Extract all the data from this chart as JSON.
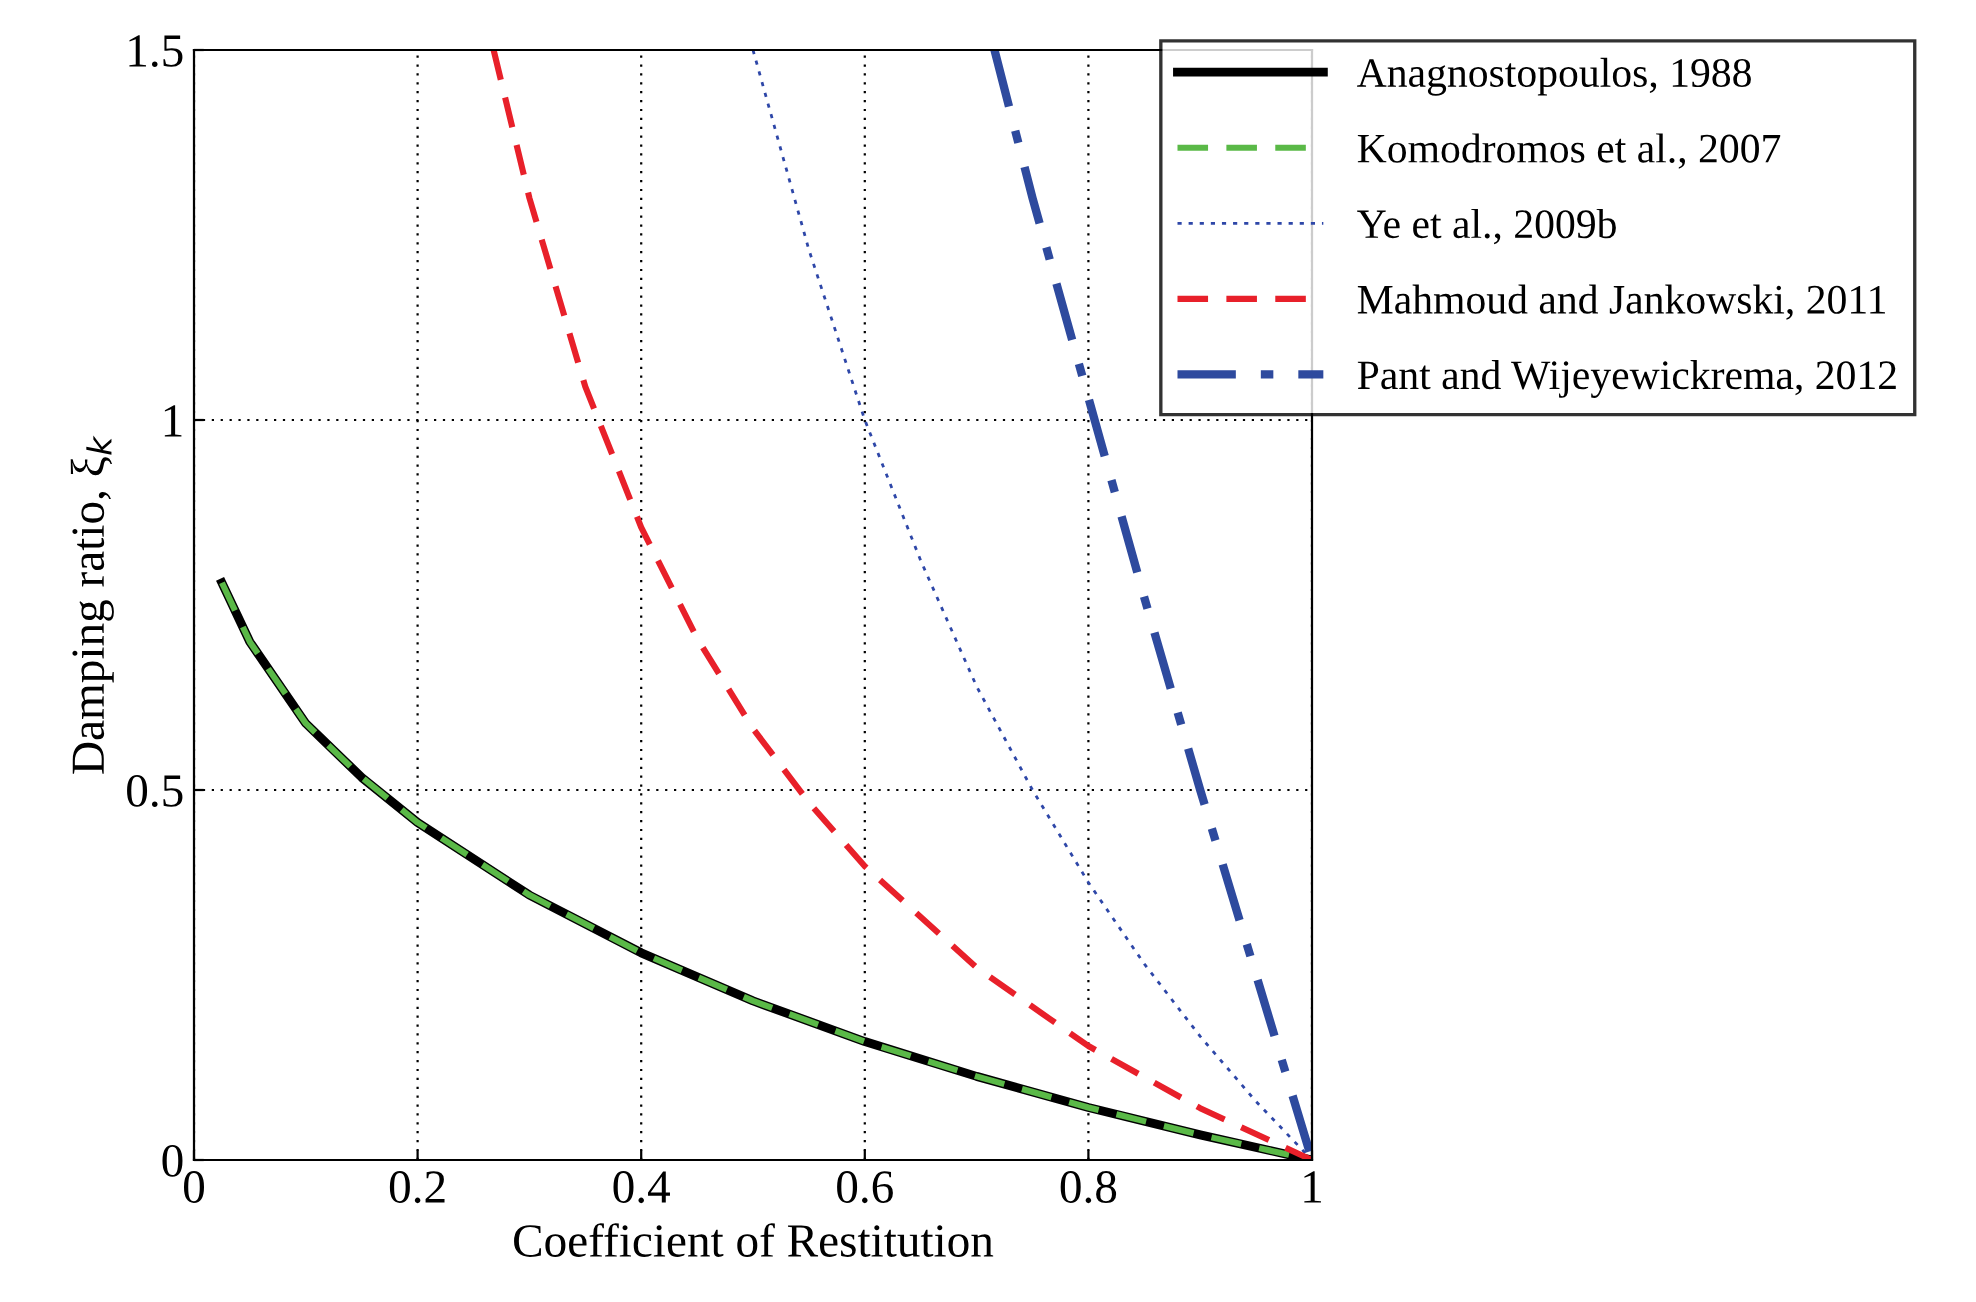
{
  "chart_data": {
    "type": "line",
    "xlabel": "Coefficient of Restitution",
    "ylabel": "Damping ratio, ξ$_{k}$",
    "xlim": [
      0,
      1
    ],
    "ylim": [
      0,
      1.5
    ],
    "xticks": [
      0,
      0.2,
      0.4,
      0.6,
      0.8,
      1
    ],
    "yticks": [
      0,
      0.5,
      1,
      1.5
    ],
    "grid": true,
    "legend": "top right",
    "marker": "none",
    "series": [
      {
        "name": "Anagnostopoulos, 1988",
        "color": "#000000",
        "line_style": "solid",
        "x": [
          0.025,
          0.05,
          0.1,
          0.15,
          0.2,
          0.3,
          0.4,
          0.5,
          0.6,
          0.7,
          0.8,
          0.9,
          1.0
        ],
        "values": [
          0.78,
          0.7,
          0.59,
          0.517,
          0.456,
          0.358,
          0.28,
          0.215,
          0.16,
          0.113,
          0.071,
          0.034,
          0
        ]
      },
      {
        "name": "Komodromos et al., 2007",
        "color": "#5ab947",
        "line_style": "dashed",
        "x": [
          0.025,
          0.05,
          0.1,
          0.15,
          0.2,
          0.3,
          0.4,
          0.5,
          0.6,
          0.7,
          0.8,
          0.9,
          1.0
        ],
        "values": [
          0.78,
          0.7,
          0.59,
          0.517,
          0.456,
          0.358,
          0.28,
          0.215,
          0.16,
          0.113,
          0.071,
          0.034,
          0
        ]
      },
      {
        "name": "Ye et al., 2009b",
        "color": "#2e47a8",
        "line_style": "dotted",
        "x": [
          0.5,
          0.55,
          0.6,
          0.65,
          0.7,
          0.75,
          0.8,
          0.85,
          0.9,
          0.95,
          1.0
        ],
        "values": [
          1.5,
          1.23,
          1.0,
          0.81,
          0.64,
          0.5,
          0.375,
          0.265,
          0.167,
          0.079,
          0
        ]
      },
      {
        "name": "Mahmoud and Jankowski, 2011",
        "color": "#e8202a",
        "line_style": "dashed",
        "x": [
          0.268,
          0.3,
          0.35,
          0.4,
          0.45,
          0.5,
          0.55,
          0.6,
          0.7,
          0.8,
          0.9,
          1.0
        ],
        "values": [
          1.5,
          1.3,
          1.045,
          0.855,
          0.705,
          0.583,
          0.483,
          0.397,
          0.26,
          0.154,
          0.07,
          0
        ]
      },
      {
        "name": "Pant and Wijeyewickrema, 2012",
        "color": "#2e4a9e",
        "line_style": "dashdot",
        "x": [
          0.716,
          0.75,
          0.8,
          0.85,
          0.9,
          0.95,
          1.0
        ],
        "values": [
          1.5,
          1.3,
          1.03,
          0.76,
          0.5,
          0.25,
          0
        ]
      }
    ]
  }
}
